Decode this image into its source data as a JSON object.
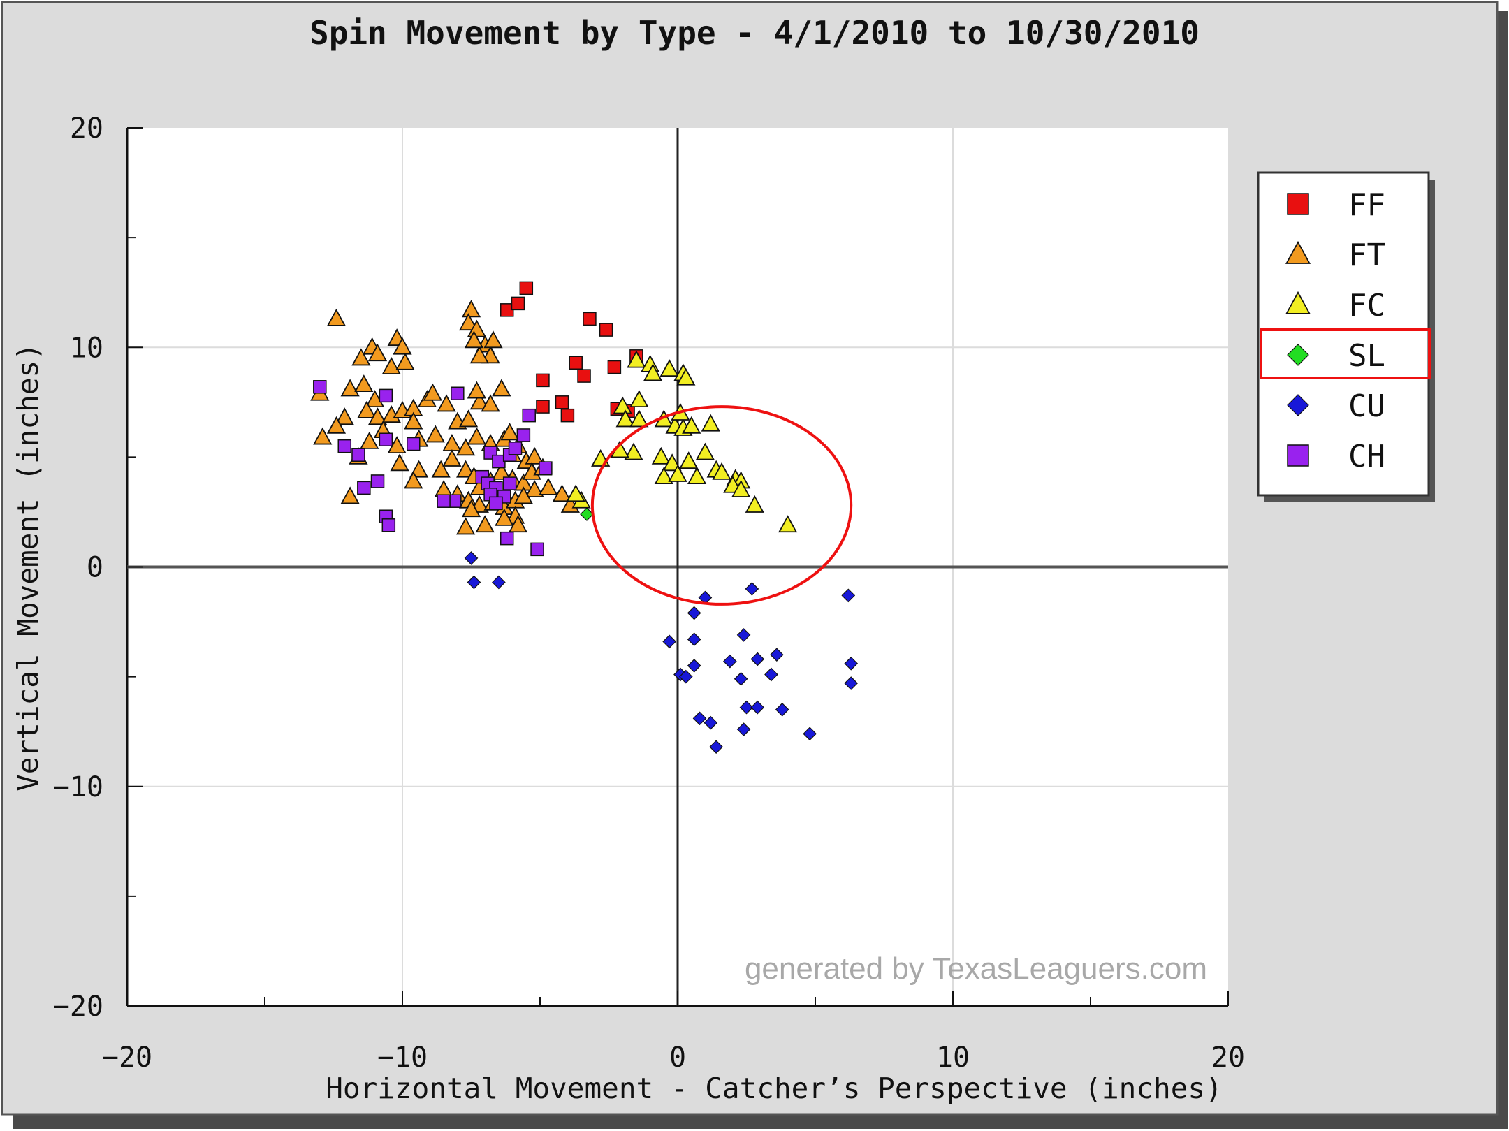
{
  "chart_data": {
    "type": "scatter",
    "title": "Spin Movement by Type - 4/1/2010 to 10/30/2010",
    "xlabel": "Horizontal Movement - Catcher’s Perspective (inches)",
    "ylabel": "Vertical Movement (inches)",
    "xlim": [
      -20,
      20
    ],
    "ylim": [
      -20,
      20
    ],
    "x_ticks": [
      -20,
      -10,
      0,
      10,
      20
    ],
    "y_ticks": [
      20,
      10,
      0,
      -10,
      -20
    ],
    "x_tick_labels": [
      "−20",
      "−10",
      "0",
      "10",
      "20"
    ],
    "y_tick_labels": [
      "20",
      "10",
      "0",
      "−10",
      "−20"
    ],
    "grid": true,
    "legend_position": "right",
    "watermark": "generated by TexasLeaguers.com",
    "highlight": {
      "legend_entry": "SL",
      "color": "#ee1111",
      "circle_center": [
        1.6,
        2.8
      ],
      "circle_radii": [
        4.7,
        4.5
      ]
    },
    "series": [
      {
        "name": "FF",
        "marker": "square",
        "color": "#e81010",
        "points": [
          [
            -6.2,
            11.7
          ],
          [
            -5.8,
            12.0
          ],
          [
            -5.5,
            12.7
          ],
          [
            -3.2,
            11.3
          ],
          [
            -2.6,
            10.8
          ],
          [
            -3.7,
            9.3
          ],
          [
            -3.4,
            8.7
          ],
          [
            -4.9,
            8.5
          ],
          [
            -4.2,
            7.5
          ],
          [
            -4.9,
            7.3
          ],
          [
            -4.0,
            6.9
          ],
          [
            -2.3,
            9.1
          ],
          [
            -2.2,
            7.2
          ],
          [
            -1.5,
            9.6
          ],
          [
            -1.8,
            7.1
          ]
        ]
      },
      {
        "name": "FT",
        "marker": "triangle",
        "color": "#f29a1f",
        "points": [
          [
            -12.4,
            11.3
          ],
          [
            -11.5,
            9.5
          ],
          [
            -11.1,
            10.0
          ],
          [
            -10.9,
            9.7
          ],
          [
            -10.2,
            10.4
          ],
          [
            -10.0,
            10.0
          ],
          [
            -10.4,
            9.1
          ],
          [
            -9.9,
            9.3
          ],
          [
            -11.9,
            8.1
          ],
          [
            -11.4,
            8.3
          ],
          [
            -11.0,
            7.6
          ],
          [
            -12.1,
            6.8
          ],
          [
            -12.4,
            6.4
          ],
          [
            -11.3,
            7.1
          ],
          [
            -10.9,
            6.8
          ],
          [
            -10.4,
            6.9
          ],
          [
            -10.0,
            7.1
          ],
          [
            -9.6,
            7.2
          ],
          [
            -9.1,
            7.6
          ],
          [
            -8.9,
            7.9
          ],
          [
            -8.4,
            7.4
          ],
          [
            -8.0,
            6.6
          ],
          [
            -7.6,
            6.7
          ],
          [
            -7.2,
            7.5
          ],
          [
            -6.8,
            7.4
          ],
          [
            -6.4,
            8.1
          ],
          [
            -7.3,
            8.0
          ],
          [
            -9.6,
            6.6
          ],
          [
            -10.7,
            6.2
          ],
          [
            -11.2,
            5.7
          ],
          [
            -10.2,
            5.5
          ],
          [
            -9.4,
            5.8
          ],
          [
            -8.8,
            6.0
          ],
          [
            -8.2,
            5.6
          ],
          [
            -7.7,
            5.4
          ],
          [
            -7.3,
            5.9
          ],
          [
            -6.8,
            5.6
          ],
          [
            -6.3,
            5.8
          ],
          [
            -6.0,
            5.1
          ],
          [
            -5.5,
            4.8
          ],
          [
            -5.2,
            5.0
          ],
          [
            -10.1,
            4.7
          ],
          [
            -9.4,
            4.4
          ],
          [
            -8.6,
            4.4
          ],
          [
            -8.2,
            4.9
          ],
          [
            -7.7,
            4.4
          ],
          [
            -7.4,
            4.1
          ],
          [
            -7.2,
            3.6
          ],
          [
            -6.8,
            3.9
          ],
          [
            -6.4,
            4.3
          ],
          [
            -6.0,
            4.0
          ],
          [
            -5.6,
            3.8
          ],
          [
            -5.2,
            3.5
          ],
          [
            -9.6,
            3.9
          ],
          [
            -8.5,
            3.5
          ],
          [
            -8.0,
            3.3
          ],
          [
            -7.6,
            3.0
          ],
          [
            -7.2,
            2.8
          ],
          [
            -6.7,
            2.9
          ],
          [
            -6.3,
            2.7
          ],
          [
            -5.9,
            3.0
          ],
          [
            -5.6,
            3.2
          ],
          [
            -5.9,
            2.3
          ],
          [
            -6.3,
            2.2
          ],
          [
            -7.0,
            1.9
          ],
          [
            -7.7,
            1.8
          ],
          [
            -7.5,
            2.6
          ],
          [
            -11.9,
            3.2
          ],
          [
            -4.2,
            3.3
          ],
          [
            -3.9,
            2.8
          ],
          [
            -4.7,
            3.6
          ],
          [
            -12.9,
            5.9
          ],
          [
            -13.0,
            7.9
          ],
          [
            -11.6,
            5.0
          ],
          [
            -5.8,
            1.9
          ],
          [
            -7.5,
            11.7
          ],
          [
            -7.6,
            11.1
          ],
          [
            -7.3,
            10.8
          ],
          [
            -7.0,
            10.1
          ],
          [
            -6.8,
            9.6
          ],
          [
            -7.2,
            9.6
          ],
          [
            -6.7,
            10.3
          ],
          [
            -7.4,
            10.3
          ],
          [
            -6.1,
            6.1
          ],
          [
            -5.8,
            5.5
          ],
          [
            -5.3,
            4.3
          ],
          [
            -4.9,
            4.5
          ]
        ]
      },
      {
        "name": "FC",
        "marker": "triangle",
        "color": "#f2ee22",
        "points": [
          [
            -1.5,
            9.4
          ],
          [
            -1.0,
            9.2
          ],
          [
            -0.3,
            9.0
          ],
          [
            0.2,
            8.8
          ],
          [
            0.3,
            8.6
          ],
          [
            -0.9,
            8.8
          ],
          [
            -2.0,
            7.3
          ],
          [
            -1.4,
            7.6
          ],
          [
            -1.9,
            6.7
          ],
          [
            -1.4,
            6.7
          ],
          [
            -0.5,
            6.7
          ],
          [
            -0.1,
            6.4
          ],
          [
            0.2,
            6.3
          ],
          [
            0.5,
            6.4
          ],
          [
            0.1,
            7.0
          ],
          [
            1.2,
            6.5
          ],
          [
            -1.6,
            5.2
          ],
          [
            -2.1,
            5.3
          ],
          [
            -2.8,
            4.9
          ],
          [
            -0.6,
            5.0
          ],
          [
            -0.2,
            4.7
          ],
          [
            0.4,
            4.8
          ],
          [
            1.0,
            5.2
          ],
          [
            1.4,
            4.4
          ],
          [
            1.6,
            4.3
          ],
          [
            2.1,
            4.0
          ],
          [
            2.3,
            3.9
          ],
          [
            -0.5,
            4.1
          ],
          [
            0.0,
            4.2
          ],
          [
            0.7,
            4.1
          ],
          [
            2.0,
            3.7
          ],
          [
            2.3,
            3.5
          ],
          [
            2.8,
            2.8
          ],
          [
            4.0,
            1.9
          ],
          [
            -3.5,
            3.0
          ],
          [
            -3.7,
            3.3
          ]
        ]
      },
      {
        "name": "SL",
        "marker": "diamond",
        "color": "#22dd22",
        "points": [
          [
            -3.3,
            2.4
          ]
        ]
      },
      {
        "name": "CU",
        "marker": "diamond",
        "color": "#1818d8",
        "points": [
          [
            -7.5,
            0.4
          ],
          [
            -7.4,
            -0.7
          ],
          [
            -6.5,
            -0.7
          ],
          [
            1.0,
            -1.4
          ],
          [
            2.7,
            -1.0
          ],
          [
            6.2,
            -1.3
          ],
          [
            0.6,
            -2.1
          ],
          [
            -0.3,
            -3.4
          ],
          [
            0.6,
            -3.3
          ],
          [
            2.4,
            -3.1
          ],
          [
            3.6,
            -4.0
          ],
          [
            2.9,
            -4.2
          ],
          [
            1.9,
            -4.3
          ],
          [
            0.6,
            -4.5
          ],
          [
            0.1,
            -4.9
          ],
          [
            0.3,
            -5.0
          ],
          [
            2.3,
            -5.1
          ],
          [
            3.4,
            -4.9
          ],
          [
            6.3,
            -4.4
          ],
          [
            6.3,
            -5.3
          ],
          [
            2.5,
            -6.4
          ],
          [
            2.9,
            -6.4
          ],
          [
            3.8,
            -6.5
          ],
          [
            0.8,
            -6.9
          ],
          [
            1.2,
            -7.1
          ],
          [
            2.4,
            -7.4
          ],
          [
            4.8,
            -7.6
          ],
          [
            1.4,
            -8.2
          ]
        ]
      },
      {
        "name": "CH",
        "marker": "square",
        "color": "#9922ee",
        "points": [
          [
            -13.0,
            8.2
          ],
          [
            -10.6,
            7.8
          ],
          [
            -12.1,
            5.5
          ],
          [
            -11.6,
            5.1
          ],
          [
            -10.6,
            5.8
          ],
          [
            -9.6,
            5.6
          ],
          [
            -8.0,
            7.9
          ],
          [
            -6.8,
            5.2
          ],
          [
            -6.5,
            4.8
          ],
          [
            -6.1,
            5.1
          ],
          [
            -5.9,
            5.4
          ],
          [
            -5.6,
            6.0
          ],
          [
            -5.4,
            6.9
          ],
          [
            -4.8,
            4.5
          ],
          [
            -7.1,
            4.1
          ],
          [
            -6.9,
            3.8
          ],
          [
            -6.6,
            3.6
          ],
          [
            -6.8,
            3.3
          ],
          [
            -6.3,
            3.2
          ],
          [
            -6.1,
            3.8
          ],
          [
            -6.6,
            2.9
          ],
          [
            -8.1,
            3.0
          ],
          [
            -8.5,
            3.0
          ],
          [
            -11.4,
            3.6
          ],
          [
            -10.9,
            3.9
          ],
          [
            -10.6,
            2.3
          ],
          [
            -10.5,
            1.9
          ],
          [
            -6.2,
            1.3
          ],
          [
            -5.1,
            0.8
          ]
        ]
      }
    ]
  }
}
